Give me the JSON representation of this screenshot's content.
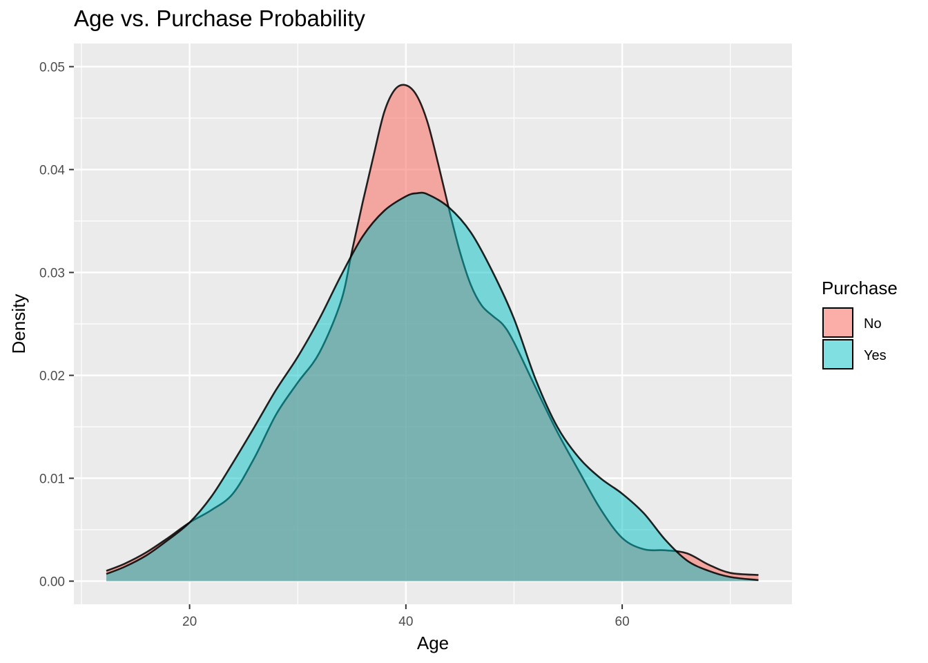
{
  "chart_data": {
    "type": "area",
    "title": "Age vs. Purchase Probability",
    "xlabel": "Age",
    "ylabel": "Density",
    "xlim": [
      9.3,
      75.7
    ],
    "ylim": [
      -0.00225,
      0.05225
    ],
    "x_ticks": [
      20,
      40,
      60
    ],
    "x_tick_labels": [
      "20",
      "40",
      "60"
    ],
    "x_minor_ticks": [
      10,
      30,
      50,
      70
    ],
    "y_ticks": [
      0,
      0.01,
      0.02,
      0.03,
      0.04,
      0.05
    ],
    "y_tick_labels": [
      "0.00",
      "0.01",
      "0.02",
      "0.03",
      "0.04",
      "0.05"
    ],
    "y_minor_ticks": [
      0.005,
      0.015,
      0.025,
      0.035,
      0.045
    ],
    "grid": true,
    "legend": {
      "title": "Purchase",
      "placement": "right"
    },
    "series": [
      {
        "name": "No",
        "color": "#F8766D",
        "points": [
          [
            12.3,
            0.001
          ],
          [
            14,
            0.0017
          ],
          [
            16,
            0.0028
          ],
          [
            18,
            0.0042
          ],
          [
            20,
            0.0057
          ],
          [
            22,
            0.0069
          ],
          [
            24,
            0.0085
          ],
          [
            26,
            0.012
          ],
          [
            28,
            0.0162
          ],
          [
            30,
            0.0193
          ],
          [
            32,
            0.0222
          ],
          [
            34,
            0.0272
          ],
          [
            35,
            0.032
          ],
          [
            36,
            0.0368
          ],
          [
            37,
            0.0413
          ],
          [
            38,
            0.0456
          ],
          [
            39,
            0.0478
          ],
          [
            40,
            0.0482
          ],
          [
            41,
            0.0472
          ],
          [
            42,
            0.0446
          ],
          [
            43,
            0.0405
          ],
          [
            44,
            0.0361
          ],
          [
            45,
            0.032
          ],
          [
            46,
            0.0288
          ],
          [
            47,
            0.0268
          ],
          [
            48,
            0.0258
          ],
          [
            49,
            0.0249
          ],
          [
            50,
            0.0232
          ],
          [
            52,
            0.0188
          ],
          [
            54,
            0.0145
          ],
          [
            56,
            0.0107
          ],
          [
            58,
            0.007
          ],
          [
            60,
            0.0042
          ],
          [
            62,
            0.0031
          ],
          [
            64,
            0.003
          ],
          [
            66,
            0.0027
          ],
          [
            68,
            0.0016
          ],
          [
            70,
            0.0008
          ],
          [
            72.6,
            0.0006
          ]
        ]
      },
      {
        "name": "Yes",
        "color": "#00BFC4",
        "points": [
          [
            12.3,
            0.0007
          ],
          [
            14,
            0.0014
          ],
          [
            16,
            0.0025
          ],
          [
            18,
            0.004
          ],
          [
            20,
            0.0057
          ],
          [
            22,
            0.0082
          ],
          [
            24,
            0.0115
          ],
          [
            26,
            0.015
          ],
          [
            28,
            0.0186
          ],
          [
            30,
            0.0218
          ],
          [
            32,
            0.0255
          ],
          [
            34,
            0.0297
          ],
          [
            36,
            0.0335
          ],
          [
            38,
            0.036
          ],
          [
            40,
            0.0374
          ],
          [
            41,
            0.0377
          ],
          [
            42,
            0.0376
          ],
          [
            44,
            0.0363
          ],
          [
            46,
            0.0339
          ],
          [
            48,
            0.0301
          ],
          [
            50,
            0.0255
          ],
          [
            52,
            0.0196
          ],
          [
            54,
            0.015
          ],
          [
            56,
            0.012
          ],
          [
            58,
            0.01
          ],
          [
            60,
            0.0085
          ],
          [
            62,
            0.0066
          ],
          [
            64,
            0.004
          ],
          [
            66,
            0.002
          ],
          [
            68,
            0.001
          ],
          [
            70,
            0.0004
          ],
          [
            72.6,
            0.0001
          ]
        ]
      }
    ]
  }
}
